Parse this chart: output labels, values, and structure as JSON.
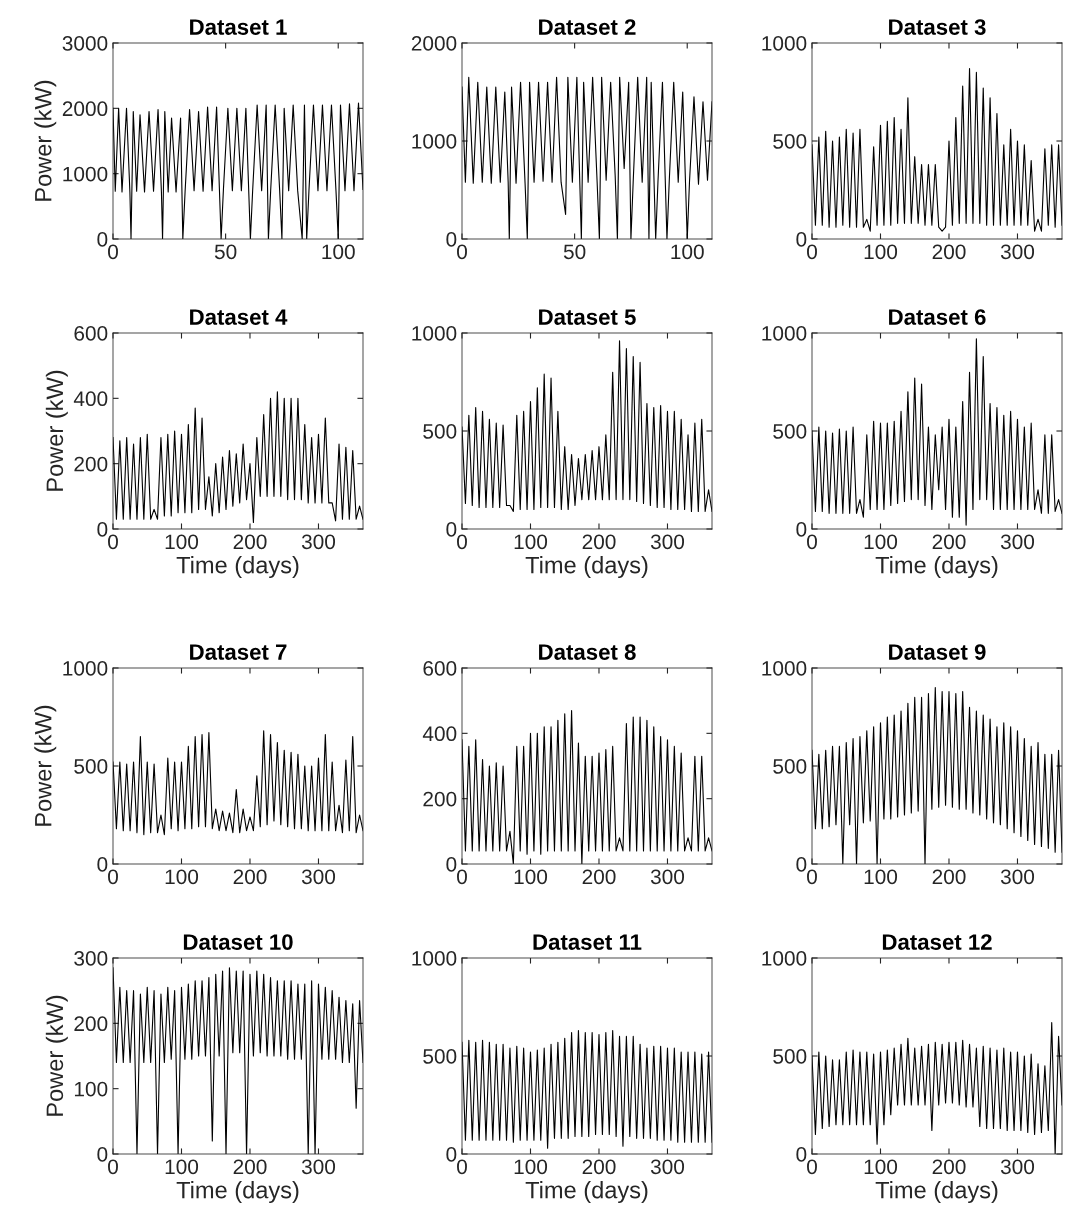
{
  "chart_data": [
    {
      "type": "line",
      "title": "Dataset 1",
      "ylabel": "Power (kW)",
      "xlim": [
        0,
        111
      ],
      "xticks": [
        0,
        50,
        100
      ],
      "ylim": [
        0,
        3000
      ],
      "yticks": [
        0,
        1000,
        2000,
        3000
      ],
      "x": [
        0,
        1,
        2.5,
        4,
        6,
        7.5,
        8,
        9,
        10.5,
        12,
        14,
        16,
        18,
        20,
        21.5,
        22,
        23,
        24.5,
        26,
        28,
        30,
        31,
        32,
        34,
        36,
        38,
        40,
        42,
        44,
        46,
        48,
        49,
        51,
        53,
        55,
        57,
        59,
        61,
        62,
        64,
        66,
        68,
        69,
        70,
        72,
        74,
        75,
        76,
        78,
        80,
        82,
        84,
        85,
        86,
        87,
        89,
        91,
        93,
        95,
        97,
        99,
        100,
        101,
        103,
        105,
        107,
        109,
        111
      ],
      "series": [
        {
          "color": "#000000",
          "values": [
            2000,
            730,
            2000,
            720,
            2000,
            720,
            0,
            1950,
            730,
            1900,
            720,
            1950,
            730,
            1980,
            720,
            0,
            1950,
            720,
            1850,
            720,
            1850,
            0,
            720,
            1980,
            740,
            1950,
            730,
            2020,
            740,
            2020,
            0,
            740,
            2000,
            740,
            2000,
            740,
            2000,
            0,
            740,
            2050,
            740,
            2050,
            0,
            740,
            2050,
            740,
            0,
            2000,
            740,
            2050,
            740,
            0,
            2050,
            0,
            740,
            2050,
            740,
            2050,
            740,
            2050,
            740,
            0,
            2050,
            740,
            2070,
            740,
            2080,
            760
          ]
        }
      ]
    },
    {
      "type": "line",
      "title": "Dataset 2",
      "xlim": [
        0,
        111
      ],
      "xticks": [
        0,
        50,
        100
      ],
      "ylim": [
        0,
        2000
      ],
      "yticks": [
        0,
        1000,
        2000
      ],
      "x": [
        0,
        1.5,
        3,
        5,
        7,
        9,
        11,
        13,
        15,
        17,
        19,
        20.5,
        21,
        22,
        24,
        26,
        28,
        29,
        30,
        32,
        34,
        36,
        38,
        40,
        42,
        44,
        46,
        47,
        49,
        51,
        53,
        54,
        56,
        58,
        60,
        61,
        62,
        64,
        66,
        68,
        69,
        70,
        72,
        74,
        75,
        76,
        78,
        80,
        82,
        83,
        84,
        86,
        87,
        89,
        91,
        92,
        94,
        96,
        98,
        100,
        101,
        103,
        105,
        107,
        109,
        111
      ],
      "series": [
        {
          "color": "#000000",
          "values": [
            1550,
            580,
            1650,
            570,
            1600,
            580,
            1550,
            570,
            1550,
            580,
            1500,
            580,
            0,
            1550,
            570,
            1600,
            570,
            0,
            1600,
            580,
            1600,
            590,
            1600,
            580,
            1650,
            580,
            250,
            1650,
            580,
            1650,
            0,
            1600,
            580,
            1650,
            580,
            0,
            1650,
            600,
            1600,
            650,
            0,
            1650,
            720,
            1600,
            0,
            580,
            1650,
            580,
            1650,
            0,
            1600,
            0,
            580,
            1600,
            0,
            580,
            1600,
            580,
            1500,
            0,
            580,
            1450,
            560,
            1400,
            600,
            1400
          ]
        }
      ]
    },
    {
      "type": "line",
      "title": "Dataset 3",
      "xlim": [
        0,
        365
      ],
      "xticks": [
        0,
        100,
        200,
        300
      ],
      "ylim": [
        0,
        1000
      ],
      "yticks": [
        0,
        500,
        1000
      ],
      "x": [
        0,
        5,
        10,
        15,
        20,
        25,
        30,
        35,
        40,
        45,
        50,
        55,
        60,
        65,
        70,
        75,
        80,
        85,
        90,
        95,
        100,
        105,
        110,
        115,
        120,
        125,
        130,
        135,
        140,
        145,
        150,
        155,
        160,
        165,
        170,
        175,
        180,
        185,
        190,
        195,
        200,
        205,
        210,
        215,
        220,
        225,
        230,
        235,
        240,
        245,
        250,
        255,
        260,
        265,
        270,
        275,
        280,
        285,
        290,
        295,
        300,
        305,
        310,
        315,
        320,
        325,
        330,
        335,
        340,
        345,
        350,
        355,
        360,
        365
      ],
      "series": [
        {
          "color": "#000000",
          "values": [
            480,
            70,
            520,
            70,
            550,
            60,
            500,
            60,
            520,
            70,
            560,
            60,
            540,
            60,
            560,
            60,
            100,
            40,
            470,
            70,
            580,
            70,
            600,
            70,
            620,
            80,
            560,
            80,
            720,
            80,
            420,
            80,
            380,
            70,
            380,
            70,
            380,
            60,
            40,
            60,
            500,
            70,
            620,
            80,
            780,
            80,
            870,
            80,
            850,
            80,
            770,
            70,
            720,
            70,
            640,
            70,
            480,
            70,
            560,
            70,
            500,
            70,
            480,
            70,
            400,
            40,
            100,
            40,
            460,
            70,
            480,
            60,
            480,
            70
          ]
        }
      ]
    },
    {
      "type": "line",
      "title": "Dataset 4",
      "ylabel": "Power (kW)",
      "xlabel": "Time (days)",
      "xlim": [
        0,
        365
      ],
      "xticks": [
        0,
        100,
        200,
        300
      ],
      "ylim": [
        0,
        600
      ],
      "yticks": [
        0,
        200,
        400,
        600
      ],
      "x": [
        0,
        5,
        10,
        15,
        20,
        25,
        30,
        35,
        40,
        45,
        50,
        55,
        60,
        65,
        70,
        75,
        80,
        85,
        90,
        95,
        100,
        105,
        110,
        115,
        120,
        125,
        130,
        135,
        140,
        145,
        150,
        155,
        160,
        165,
        170,
        175,
        180,
        185,
        190,
        195,
        200,
        205,
        210,
        215,
        220,
        225,
        230,
        235,
        240,
        245,
        250,
        255,
        260,
        265,
        270,
        275,
        280,
        285,
        290,
        295,
        300,
        305,
        310,
        315,
        320,
        325,
        330,
        335,
        340,
        345,
        350,
        355,
        360,
        365
      ],
      "series": [
        {
          "color": "#000000",
          "values": [
            280,
            30,
            270,
            30,
            280,
            30,
            260,
            30,
            280,
            30,
            290,
            30,
            60,
            30,
            280,
            40,
            290,
            40,
            300,
            50,
            290,
            50,
            320,
            50,
            370,
            60,
            340,
            60,
            160,
            40,
            200,
            50,
            220,
            60,
            240,
            70,
            230,
            80,
            260,
            90,
            200,
            20,
            280,
            100,
            350,
            100,
            400,
            100,
            420,
            100,
            400,
            90,
            400,
            90,
            400,
            90,
            320,
            80,
            280,
            80,
            290,
            80,
            340,
            80,
            80,
            25,
            260,
            30,
            250,
            30,
            240,
            30,
            70,
            30
          ]
        }
      ]
    },
    {
      "type": "line",
      "title": "Dataset 5",
      "xlabel": "Time (days)",
      "xlim": [
        0,
        365
      ],
      "xticks": [
        0,
        100,
        200,
        300
      ],
      "ylim": [
        0,
        1000
      ],
      "yticks": [
        0,
        500,
        1000
      ],
      "x": [
        0,
        5,
        10,
        15,
        20,
        25,
        30,
        35,
        40,
        45,
        50,
        55,
        60,
        65,
        70,
        75,
        80,
        85,
        90,
        95,
        100,
        105,
        110,
        115,
        120,
        125,
        130,
        135,
        140,
        145,
        150,
        155,
        160,
        165,
        170,
        175,
        180,
        185,
        190,
        195,
        200,
        205,
        210,
        215,
        220,
        225,
        230,
        235,
        240,
        245,
        250,
        255,
        260,
        265,
        270,
        275,
        280,
        285,
        290,
        295,
        300,
        305,
        310,
        315,
        320,
        325,
        330,
        335,
        340,
        345,
        350,
        355,
        360,
        365
      ],
      "series": [
        {
          "color": "#000000",
          "values": [
            520,
            130,
            580,
            120,
            620,
            110,
            600,
            110,
            560,
            110,
            540,
            110,
            530,
            120,
            120,
            90,
            580,
            100,
            600,
            100,
            650,
            100,
            720,
            110,
            790,
            110,
            770,
            110,
            600,
            100,
            420,
            100,
            380,
            120,
            360,
            150,
            380,
            150,
            400,
            150,
            420,
            150,
            480,
            150,
            800,
            150,
            960,
            150,
            920,
            150,
            880,
            140,
            850,
            130,
            640,
            120,
            620,
            110,
            630,
            110,
            600,
            100,
            600,
            100,
            560,
            100,
            480,
            90,
            540,
            90,
            560,
            90,
            200,
            90
          ]
        }
      ]
    },
    {
      "type": "line",
      "title": "Dataset 6",
      "xlabel": "Time (days)",
      "xlim": [
        0,
        365
      ],
      "xticks": [
        0,
        100,
        200,
        300
      ],
      "ylim": [
        0,
        1000
      ],
      "yticks": [
        0,
        500,
        1000
      ],
      "x": [
        0,
        5,
        10,
        15,
        20,
        25,
        30,
        35,
        40,
        45,
        50,
        55,
        60,
        65,
        70,
        75,
        80,
        85,
        90,
        95,
        100,
        105,
        110,
        115,
        120,
        125,
        130,
        135,
        140,
        145,
        150,
        155,
        160,
        165,
        170,
        175,
        180,
        185,
        190,
        195,
        200,
        205,
        210,
        215,
        220,
        225,
        230,
        235,
        240,
        245,
        250,
        255,
        260,
        265,
        270,
        275,
        280,
        285,
        290,
        295,
        300,
        305,
        310,
        315,
        320,
        325,
        330,
        335,
        340,
        345,
        350,
        355,
        360,
        365
      ],
      "series": [
        {
          "color": "#000000",
          "values": [
            500,
            90,
            520,
            90,
            500,
            80,
            490,
            80,
            510,
            80,
            500,
            80,
            520,
            80,
            150,
            60,
            480,
            100,
            550,
            100,
            540,
            100,
            540,
            120,
            550,
            130,
            600,
            140,
            700,
            150,
            770,
            150,
            740,
            120,
            520,
            100,
            480,
            200,
            520,
            100,
            560,
            60,
            520,
            60,
            650,
            20,
            800,
            100,
            970,
            150,
            880,
            150,
            640,
            100,
            620,
            100,
            580,
            100,
            600,
            100,
            560,
            100,
            520,
            100,
            540,
            100,
            200,
            80,
            480,
            80,
            480,
            90,
            150,
            80
          ]
        }
      ]
    },
    {
      "type": "line",
      "title": "Dataset 7",
      "ylabel": "Power (kW)",
      "xlim": [
        0,
        365
      ],
      "xticks": [
        0,
        100,
        200,
        300
      ],
      "ylim": [
        0,
        1000
      ],
      "yticks": [
        0,
        500,
        1000
      ],
      "x": [
        0,
        5,
        10,
        15,
        20,
        25,
        30,
        35,
        40,
        45,
        50,
        55,
        60,
        65,
        70,
        75,
        80,
        85,
        90,
        95,
        100,
        105,
        110,
        115,
        120,
        125,
        130,
        135,
        140,
        145,
        150,
        155,
        160,
        165,
        170,
        175,
        180,
        185,
        190,
        195,
        200,
        205,
        210,
        215,
        220,
        225,
        230,
        235,
        240,
        245,
        250,
        255,
        260,
        265,
        270,
        275,
        280,
        285,
        290,
        295,
        300,
        305,
        310,
        315,
        320,
        325,
        330,
        335,
        340,
        345,
        350,
        355,
        360,
        365
      ],
      "series": [
        {
          "color": "#000000",
          "values": [
            520,
            180,
            520,
            170,
            510,
            170,
            520,
            160,
            650,
            150,
            520,
            160,
            510,
            160,
            250,
            150,
            540,
            180,
            520,
            170,
            520,
            180,
            600,
            180,
            650,
            190,
            660,
            190,
            670,
            180,
            280,
            170,
            270,
            170,
            260,
            160,
            380,
            160,
            280,
            170,
            240,
            170,
            450,
            190,
            680,
            200,
            660,
            220,
            620,
            200,
            580,
            190,
            570,
            180,
            560,
            180,
            500,
            170,
            500,
            170,
            540,
            170,
            660,
            170,
            520,
            170,
            300,
            160,
            530,
            170,
            650,
            160,
            250,
            170
          ]
        }
      ]
    },
    {
      "type": "line",
      "title": "Dataset 8",
      "xlim": [
        0,
        365
      ],
      "xticks": [
        0,
        100,
        200,
        300
      ],
      "ylim": [
        0,
        600
      ],
      "yticks": [
        0,
        200,
        400,
        600
      ],
      "x": [
        0,
        5,
        10,
        15,
        20,
        25,
        30,
        35,
        40,
        45,
        50,
        55,
        60,
        65,
        70,
        75,
        80,
        85,
        90,
        95,
        100,
        105,
        110,
        115,
        120,
        125,
        130,
        135,
        140,
        145,
        150,
        155,
        160,
        165,
        170,
        175,
        180,
        185,
        190,
        195,
        200,
        205,
        210,
        215,
        220,
        225,
        230,
        235,
        240,
        245,
        250,
        255,
        260,
        265,
        270,
        275,
        280,
        285,
        290,
        295,
        300,
        305,
        310,
        315,
        320,
        325,
        330,
        335,
        340,
        345,
        350,
        355,
        360,
        365
      ],
      "series": [
        {
          "color": "#000000",
          "values": [
            380,
            40,
            360,
            40,
            380,
            40,
            320,
            40,
            300,
            40,
            310,
            40,
            300,
            40,
            100,
            0,
            360,
            40,
            360,
            30,
            400,
            40,
            400,
            30,
            420,
            40,
            420,
            40,
            440,
            40,
            460,
            40,
            470,
            40,
            370,
            0,
            330,
            40,
            330,
            40,
            340,
            40,
            350,
            40,
            360,
            40,
            80,
            40,
            430,
            40,
            450,
            40,
            450,
            40,
            440,
            40,
            420,
            40,
            390,
            40,
            380,
            40,
            360,
            40,
            340,
            40,
            80,
            40,
            330,
            40,
            330,
            40,
            80,
            40
          ]
        }
      ]
    },
    {
      "type": "line",
      "title": "Dataset 9",
      "xlim": [
        0,
        365
      ],
      "xticks": [
        0,
        100,
        200,
        300
      ],
      "ylim": [
        0,
        1000
      ],
      "yticks": [
        0,
        500,
        1000
      ],
      "x": [
        0,
        5,
        10,
        15,
        20,
        25,
        30,
        35,
        40,
        45,
        50,
        55,
        60,
        65,
        70,
        75,
        80,
        85,
        90,
        95,
        100,
        105,
        110,
        115,
        120,
        125,
        130,
        135,
        140,
        145,
        150,
        155,
        160,
        165,
        170,
        175,
        180,
        185,
        190,
        195,
        200,
        205,
        210,
        215,
        220,
        225,
        230,
        235,
        240,
        245,
        250,
        255,
        260,
        265,
        270,
        275,
        280,
        285,
        290,
        295,
        300,
        305,
        310,
        315,
        320,
        325,
        330,
        335,
        340,
        345,
        350,
        355,
        360,
        365
      ],
      "series": [
        {
          "color": "#000000",
          "values": [
            580,
            180,
            560,
            180,
            580,
            190,
            600,
            200,
            600,
            0,
            620,
            200,
            640,
            0,
            650,
            210,
            680,
            220,
            700,
            0,
            720,
            230,
            750,
            230,
            760,
            240,
            780,
            250,
            820,
            260,
            850,
            270,
            850,
            0,
            870,
            280,
            900,
            290,
            880,
            300,
            880,
            290,
            870,
            280,
            880,
            280,
            800,
            260,
            780,
            250,
            760,
            230,
            740,
            210,
            700,
            200,
            720,
            180,
            700,
            160,
            680,
            140,
            640,
            120,
            600,
            100,
            620,
            90,
            560,
            80,
            560,
            60,
            580,
            60
          ]
        }
      ]
    },
    {
      "type": "line",
      "title": "Dataset 10",
      "ylabel": "Power (kW)",
      "xlabel": "Time (days)",
      "xlim": [
        0,
        365
      ],
      "xticks": [
        0,
        100,
        200,
        300
      ],
      "ylim": [
        0,
        300
      ],
      "yticks": [
        0,
        100,
        200,
        300
      ],
      "x": [
        0,
        5,
        10,
        15,
        20,
        25,
        30,
        35,
        40,
        45,
        50,
        55,
        60,
        65,
        70,
        75,
        80,
        85,
        90,
        95,
        100,
        105,
        110,
        115,
        120,
        125,
        130,
        135,
        140,
        145,
        150,
        155,
        160,
        165,
        170,
        175,
        180,
        185,
        190,
        195,
        200,
        205,
        210,
        215,
        220,
        225,
        230,
        235,
        240,
        245,
        250,
        255,
        260,
        265,
        270,
        275,
        280,
        285,
        290,
        295,
        300,
        305,
        310,
        315,
        320,
        325,
        330,
        335,
        340,
        345,
        350,
        355,
        360,
        365
      ],
      "series": [
        {
          "color": "#000000",
          "values": [
            285,
            140,
            255,
            140,
            250,
            140,
            250,
            0,
            245,
            140,
            255,
            140,
            250,
            0,
            245,
            140,
            255,
            145,
            250,
            0,
            255,
            145,
            260,
            145,
            265,
            150,
            265,
            150,
            270,
            20,
            275,
            150,
            280,
            0,
            285,
            155,
            280,
            155,
            280,
            0,
            275,
            150,
            280,
            155,
            275,
            150,
            270,
            150,
            265,
            150,
            265,
            145,
            265,
            145,
            260,
            145,
            260,
            0,
            265,
            0,
            260,
            145,
            255,
            145,
            250,
            145,
            240,
            140,
            235,
            140,
            230,
            70,
            235,
            140
          ]
        }
      ]
    },
    {
      "type": "line",
      "title": "Dataset 11",
      "xlabel": "Time (days)",
      "xlim": [
        0,
        365
      ],
      "xticks": [
        0,
        100,
        200,
        300
      ],
      "ylim": [
        0,
        1000
      ],
      "yticks": [
        0,
        500,
        1000
      ],
      "x": [
        0,
        5,
        10,
        15,
        20,
        25,
        30,
        35,
        40,
        45,
        50,
        55,
        60,
        65,
        70,
        75,
        80,
        85,
        90,
        95,
        100,
        105,
        110,
        115,
        120,
        125,
        130,
        135,
        140,
        145,
        150,
        155,
        160,
        165,
        170,
        175,
        180,
        185,
        190,
        195,
        200,
        205,
        210,
        215,
        220,
        225,
        230,
        235,
        240,
        245,
        250,
        255,
        260,
        265,
        270,
        275,
        280,
        285,
        290,
        295,
        300,
        305,
        310,
        315,
        320,
        325,
        330,
        335,
        340,
        345,
        350,
        355,
        360,
        365
      ],
      "series": [
        {
          "color": "#000000",
          "values": [
            570,
            70,
            580,
            70,
            570,
            70,
            580,
            70,
            570,
            70,
            560,
            70,
            560,
            70,
            540,
            60,
            550,
            70,
            540,
            70,
            520,
            70,
            530,
            70,
            540,
            30,
            560,
            80,
            570,
            80,
            590,
            80,
            620,
            90,
            630,
            90,
            620,
            90,
            620,
            100,
            610,
            100,
            620,
            100,
            630,
            90,
            600,
            40,
            600,
            90,
            600,
            80,
            560,
            80,
            540,
            80,
            550,
            70,
            550,
            70,
            540,
            70,
            540,
            60,
            520,
            60,
            520,
            60,
            520,
            60,
            510,
            60,
            520,
            60
          ]
        }
      ]
    },
    {
      "type": "line",
      "title": "Dataset 12",
      "xlabel": "Time (days)",
      "xlim": [
        0,
        365
      ],
      "xticks": [
        0,
        100,
        200,
        300
      ],
      "ylim": [
        0,
        1000
      ],
      "yticks": [
        0,
        500,
        1000
      ],
      "x": [
        0,
        5,
        10,
        15,
        20,
        25,
        30,
        35,
        40,
        45,
        50,
        55,
        60,
        65,
        70,
        75,
        80,
        85,
        90,
        95,
        100,
        105,
        110,
        115,
        120,
        125,
        130,
        135,
        140,
        145,
        150,
        155,
        160,
        165,
        170,
        175,
        180,
        185,
        190,
        195,
        200,
        205,
        210,
        215,
        220,
        225,
        230,
        235,
        240,
        245,
        250,
        255,
        260,
        265,
        270,
        275,
        280,
        285,
        290,
        295,
        300,
        305,
        310,
        315,
        320,
        325,
        330,
        335,
        340,
        345,
        350,
        355,
        360,
        365
      ],
      "series": [
        {
          "color": "#000000",
          "values": [
            500,
            100,
            520,
            130,
            500,
            140,
            480,
            150,
            480,
            150,
            520,
            150,
            530,
            150,
            520,
            150,
            520,
            150,
            510,
            50,
            520,
            150,
            530,
            200,
            540,
            250,
            560,
            250,
            590,
            250,
            540,
            250,
            550,
            250,
            560,
            120,
            570,
            250,
            560,
            260,
            570,
            260,
            570,
            250,
            580,
            240,
            560,
            240,
            540,
            140,
            550,
            130,
            540,
            130,
            530,
            130,
            540,
            120,
            520,
            120,
            520,
            120,
            500,
            110,
            510,
            100,
            460,
            110,
            450,
            120,
            670,
            0,
            600,
            250
          ]
        }
      ]
    }
  ]
}
